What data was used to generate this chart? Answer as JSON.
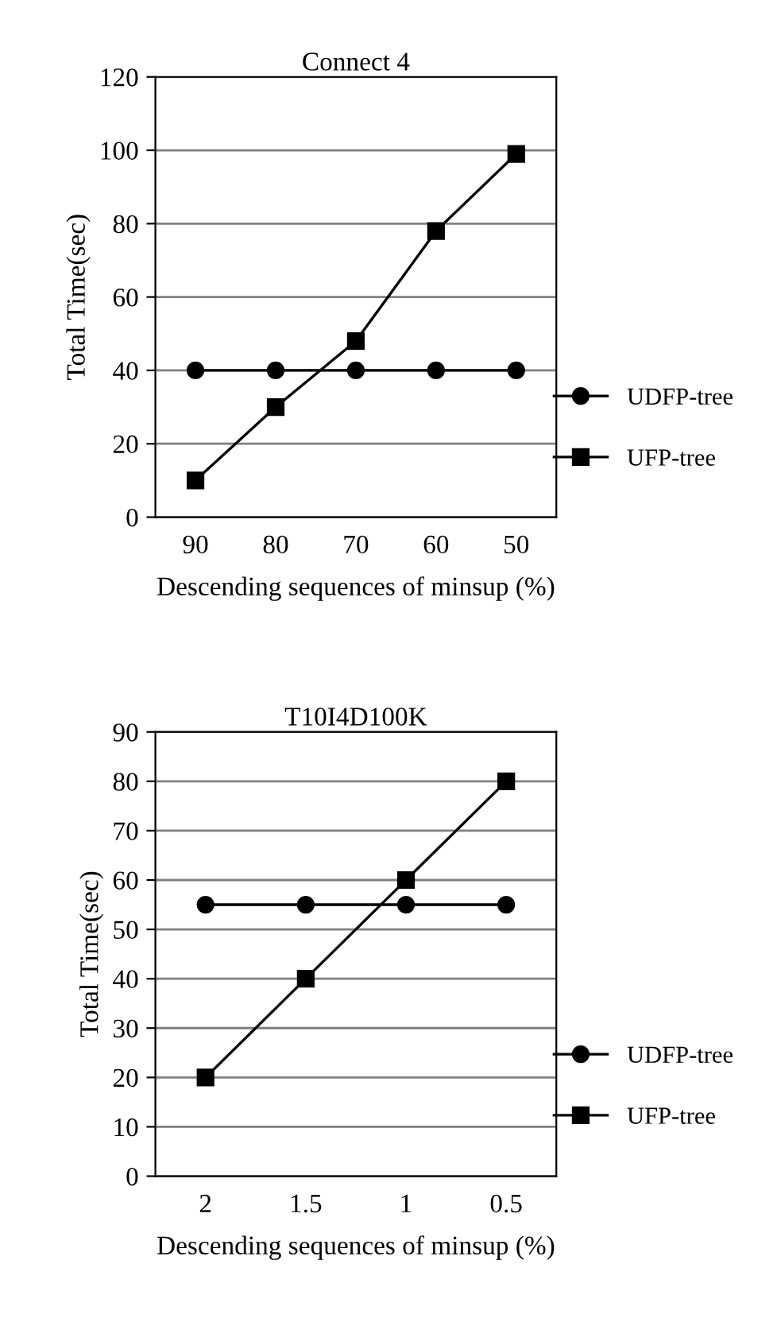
{
  "chart_data": [
    {
      "type": "line",
      "title": "Connect 4",
      "xlabel": "Descending sequences of minsup (%)",
      "ylabel": "Total Time(sec)",
      "categories": [
        "90",
        "80",
        "70",
        "60",
        "50"
      ],
      "series": [
        {
          "name": "UDFP-tree",
          "color": "#000000",
          "marker": "circle",
          "values": [
            40,
            40,
            40,
            40,
            40
          ]
        },
        {
          "name": "UFP-tree",
          "color": "#000000",
          "marker": "square",
          "values": [
            10,
            30,
            48,
            78,
            99
          ]
        }
      ],
      "ylim": [
        0,
        120
      ],
      "yticks": [
        0,
        20,
        40,
        60,
        80,
        100,
        120
      ],
      "grid": "y",
      "legend": "right",
      "line_style": "solid"
    },
    {
      "type": "line",
      "title": "T10I4D100K",
      "xlabel": "Descending sequences of minsup (%)",
      "ylabel": "Total Time(sec)",
      "categories": [
        "2",
        "1.5",
        "1",
        "0.5"
      ],
      "series": [
        {
          "name": "UDFP-tree",
          "color": "#000000",
          "marker": "circle",
          "values": [
            55,
            55,
            55,
            55
          ]
        },
        {
          "name": "UFP-tree",
          "color": "#000000",
          "marker": "square",
          "values": [
            20,
            40,
            60,
            80
          ]
        }
      ],
      "ylim": [
        0,
        90
      ],
      "yticks": [
        0,
        10,
        20,
        30,
        40,
        50,
        60,
        70,
        80,
        90
      ],
      "grid": "y",
      "legend": "right",
      "line_style": "solid"
    }
  ]
}
